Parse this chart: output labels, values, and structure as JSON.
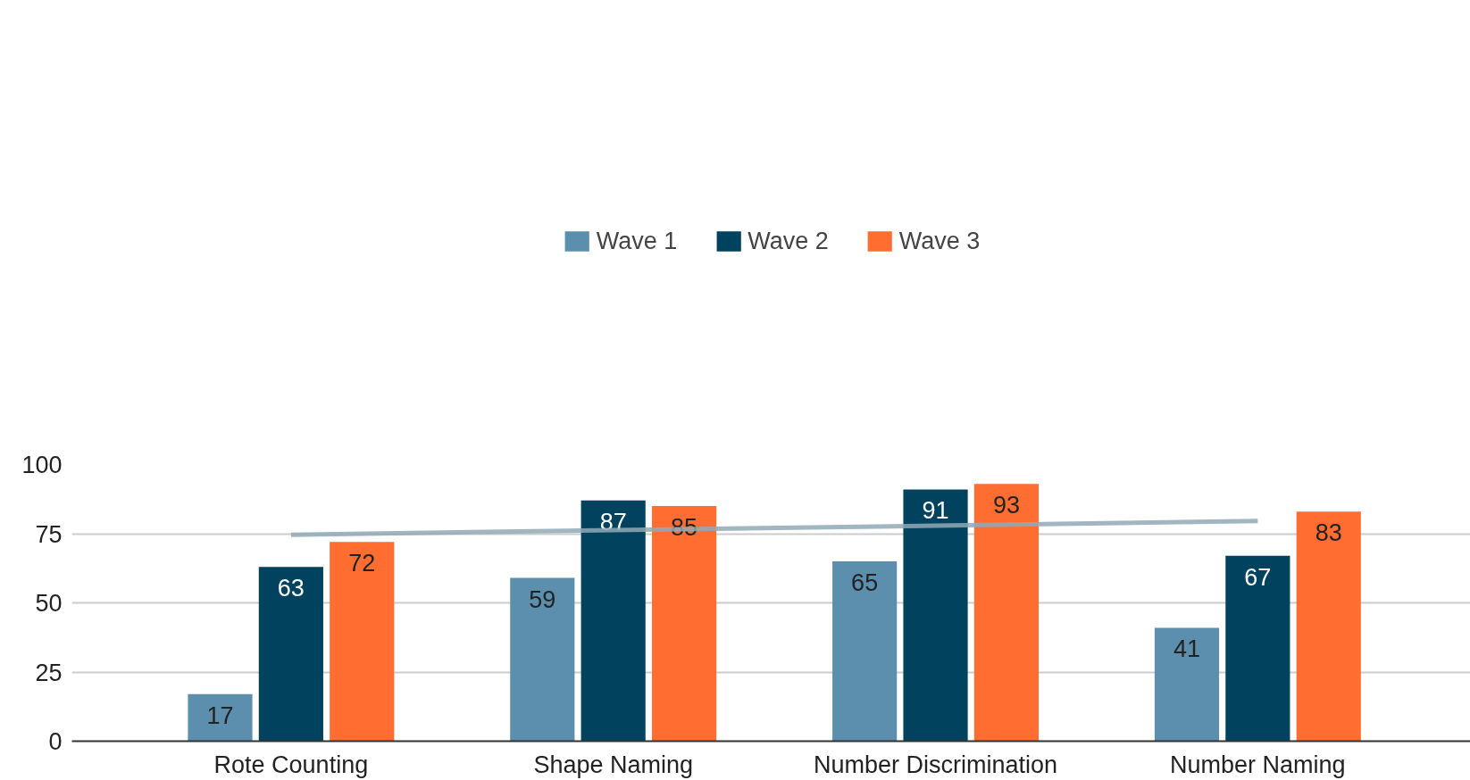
{
  "chart_data": {
    "type": "bar",
    "categories": [
      "Rote Counting",
      "Shape Naming",
      "Number Discrimination",
      "Number Naming"
    ],
    "series": [
      {
        "name": "Wave 1",
        "color": "#5b8fad",
        "values": [
          17,
          59,
          65,
          41
        ],
        "value_labels": [
          "17",
          "59",
          "65",
          "41"
        ]
      },
      {
        "name": "Wave 2",
        "color": "#01425e",
        "values": [
          63,
          87,
          91,
          67
        ],
        "value_labels": [
          "63",
          "87",
          "91",
          "67"
        ]
      },
      {
        "name": "Wave 3",
        "color": "#ff6d31",
        "values": [
          72,
          85,
          93,
          83
        ],
        "value_labels": [
          "72",
          "85",
          "93",
          "83"
        ]
      },
      {
        "type": "line",
        "color": "#90a9b6",
        "values": [
          74.6,
          76.3,
          77.9,
          79.6
        ]
      }
    ],
    "ylim": [
      0,
      100
    ],
    "yticks": [
      0,
      25,
      50,
      75,
      100
    ],
    "grid": "y",
    "legend": "top"
  }
}
